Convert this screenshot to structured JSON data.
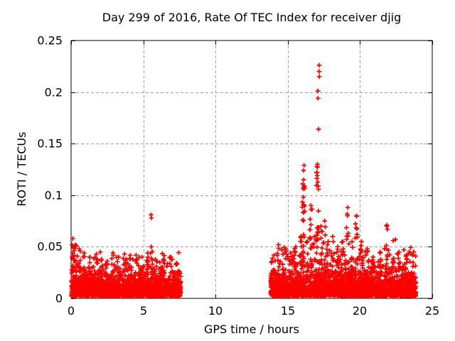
{
  "chart_data": {
    "type": "scatter",
    "title": "Day 299 of 2016, Rate Of TEC Index for receiver djig",
    "xlabel": "GPS time / hours",
    "ylabel": "ROTI / TECUs",
    "xlim": [
      0,
      25
    ],
    "ylim": [
      0,
      0.25
    ],
    "xticks": [
      0,
      5,
      10,
      15,
      20,
      25
    ],
    "xtick_labels": [
      "0",
      "5",
      "10",
      "15",
      "20",
      "25"
    ],
    "yticks": [
      0,
      0.05,
      0.1,
      0.15,
      0.2,
      0.25
    ],
    "ytick_labels": [
      "0",
      "0.05",
      "0.1",
      "0.15",
      "0.2",
      "0.25"
    ],
    "grid": {
      "show": true,
      "color": "#a0a0a0",
      "dash": [
        4,
        3
      ]
    },
    "frame_color": "#000000",
    "marker": {
      "shape": "plus",
      "color": "#ff0000",
      "size": 7
    },
    "legend": "none",
    "series": [
      {
        "name": "ROTI",
        "clusters": [
          {
            "x_start": 0.03,
            "x_end": 7.58,
            "count": 1800,
            "y_min": 0.002,
            "y_scale": 0.0085,
            "y_softcap": 0.045
          },
          {
            "x_start": 13.8,
            "x_end": 23.87,
            "count": 2400,
            "y_min": 0.002,
            "y_scale": 0.0095,
            "y_softcap": 0.05
          }
        ],
        "spike_columns": [
          {
            "x": 0.12,
            "ymax": 0.058,
            "count": 10
          },
          {
            "x": 0.3,
            "ymax": 0.052,
            "count": 8
          },
          {
            "x": 0.55,
            "ymax": 0.048,
            "count": 7
          },
          {
            "x": 0.9,
            "ymax": 0.044,
            "count": 6
          },
          {
            "x": 1.3,
            "ymax": 0.04,
            "count": 6
          },
          {
            "x": 1.75,
            "ymax": 0.043,
            "count": 7
          },
          {
            "x": 2.1,
            "ymax": 0.038,
            "count": 5
          },
          {
            "x": 2.5,
            "ymax": 0.036,
            "count": 5
          },
          {
            "x": 2.9,
            "ymax": 0.044,
            "count": 7
          },
          {
            "x": 3.3,
            "ymax": 0.04,
            "count": 5
          },
          {
            "x": 3.7,
            "ymax": 0.043,
            "count": 6
          },
          {
            "x": 4.1,
            "ymax": 0.038,
            "count": 5
          },
          {
            "x": 4.5,
            "ymax": 0.042,
            "count": 6
          },
          {
            "x": 4.9,
            "ymax": 0.04,
            "count": 5
          },
          {
            "x": 5.3,
            "ymax": 0.044,
            "count": 6
          },
          {
            "x": 5.55,
            "ymax": 0.05,
            "count": 5
          },
          {
            "x": 5.9,
            "ymax": 0.036,
            "count": 4
          },
          {
            "x": 6.4,
            "ymax": 0.038,
            "count": 5
          },
          {
            "x": 6.9,
            "ymax": 0.04,
            "count": 5
          },
          {
            "x": 7.3,
            "ymax": 0.034,
            "count": 4
          },
          {
            "x": 14.05,
            "ymax": 0.042,
            "count": 6
          },
          {
            "x": 14.35,
            "ymax": 0.052,
            "count": 7
          },
          {
            "x": 14.85,
            "ymax": 0.048,
            "count": 6
          },
          {
            "x": 15.2,
            "ymax": 0.044,
            "count": 6
          },
          {
            "x": 15.55,
            "ymax": 0.05,
            "count": 7
          },
          {
            "x": 15.9,
            "ymax": 0.06,
            "count": 8
          },
          {
            "x": 16.1,
            "ymax": 0.115,
            "count": 26
          },
          {
            "x": 16.35,
            "ymax": 0.055,
            "count": 7
          },
          {
            "x": 16.6,
            "ymax": 0.09,
            "count": 16
          },
          {
            "x": 16.85,
            "ymax": 0.06,
            "count": 8
          },
          {
            "x": 17.05,
            "ymax": 0.13,
            "count": 22
          },
          {
            "x": 17.3,
            "ymax": 0.07,
            "count": 10
          },
          {
            "x": 17.55,
            "ymax": 0.075,
            "count": 12
          },
          {
            "x": 17.8,
            "ymax": 0.055,
            "count": 7
          },
          {
            "x": 18.1,
            "ymax": 0.06,
            "count": 8
          },
          {
            "x": 18.45,
            "ymax": 0.05,
            "count": 6
          },
          {
            "x": 18.8,
            "ymax": 0.055,
            "count": 7
          },
          {
            "x": 19.15,
            "ymax": 0.088,
            "count": 14
          },
          {
            "x": 19.45,
            "ymax": 0.055,
            "count": 7
          },
          {
            "x": 19.75,
            "ymax": 0.08,
            "count": 10
          },
          {
            "x": 20.1,
            "ymax": 0.055,
            "count": 8
          },
          {
            "x": 20.5,
            "ymax": 0.048,
            "count": 6
          },
          {
            "x": 20.9,
            "ymax": 0.04,
            "count": 5
          },
          {
            "x": 21.4,
            "ymax": 0.045,
            "count": 6
          },
          {
            "x": 21.85,
            "ymax": 0.071,
            "count": 4
          },
          {
            "x": 22.3,
            "ymax": 0.056,
            "count": 4
          },
          {
            "x": 22.7,
            "ymax": 0.045,
            "count": 5
          },
          {
            "x": 23.2,
            "ymax": 0.042,
            "count": 5
          },
          {
            "x": 23.7,
            "ymax": 0.045,
            "count": 5
          }
        ],
        "outlier_points": [
          [
            5.53,
            0.081
          ],
          [
            5.56,
            0.078
          ],
          [
            16.09,
            0.124
          ],
          [
            16.12,
            0.129
          ],
          [
            17.03,
            0.128
          ],
          [
            17.08,
            0.201
          ],
          [
            17.09,
            0.194
          ],
          [
            17.12,
            0.164
          ],
          [
            17.17,
            0.226
          ],
          [
            17.17,
            0.22
          ],
          [
            17.18,
            0.215
          ],
          [
            21.85,
            0.07
          ],
          [
            21.9,
            0.067
          ],
          [
            22.45,
            0.057
          ]
        ]
      }
    ]
  }
}
